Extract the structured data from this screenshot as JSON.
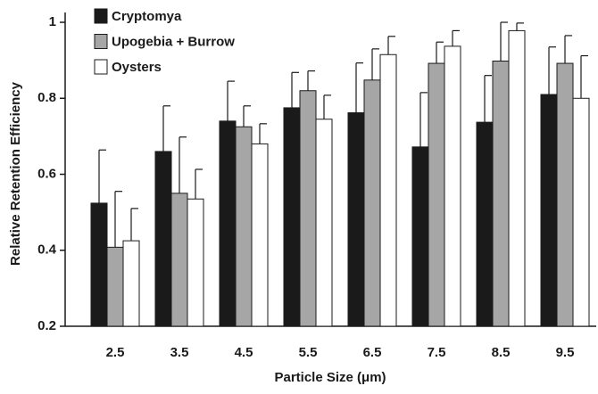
{
  "chart_data": {
    "type": "bar",
    "x_label": "Particle Size (μm)",
    "y_label": "Relative Retention Efficiency",
    "categories": [
      "2.5",
      "3.5",
      "4.5",
      "5.5",
      "6.5",
      "7.5",
      "8.5",
      "9.5"
    ],
    "series": [
      {
        "name": "Cryptomya",
        "color": "#1a1a1a",
        "values": [
          0.524,
          0.66,
          0.74,
          0.775,
          0.762,
          0.672,
          0.737,
          0.81
        ],
        "errors": [
          0.14,
          0.12,
          0.105,
          0.093,
          0.131,
          0.143,
          0.123,
          0.125
        ]
      },
      {
        "name": "Upogebia + Burrow",
        "color": "#a6a6a6",
        "values": [
          0.408,
          0.55,
          0.725,
          0.82,
          0.848,
          0.892,
          0.898,
          0.892
        ],
        "errors": [
          0.147,
          0.148,
          0.055,
          0.052,
          0.082,
          0.056,
          0.102,
          0.073
        ]
      },
      {
        "name": "Oysters",
        "color": "#ffffff",
        "values": [
          0.425,
          0.535,
          0.68,
          0.745,
          0.915,
          0.937,
          0.978,
          0.8
        ],
        "errors": [
          0.085,
          0.078,
          0.053,
          0.063,
          0.048,
          0.041,
          0.02,
          0.112
        ]
      }
    ],
    "ylim": [
      0.2,
      1.02
    ],
    "yticks": [
      0.2,
      0.4,
      0.6,
      0.8,
      1
    ],
    "legend": "upper-left"
  }
}
